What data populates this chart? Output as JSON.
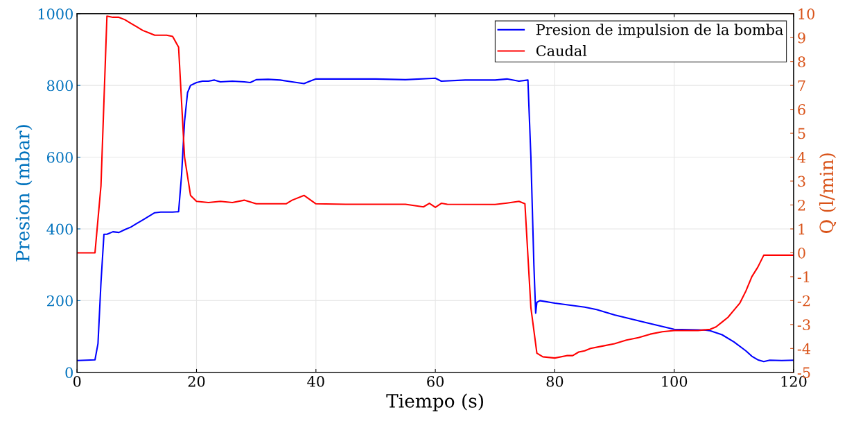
{
  "chart_data": {
    "type": "line",
    "xlabel": "Tiempo (s)",
    "ylabel": "Presion (mbar)",
    "y2label": "Q (l/min)",
    "xlim": [
      0,
      120
    ],
    "xticks": [
      0,
      20,
      40,
      60,
      80,
      100,
      120
    ],
    "ylim": [
      0,
      1000
    ],
    "yticks": [
      0,
      200,
      400,
      600,
      800,
      1000
    ],
    "y2lim": [
      -5,
      10
    ],
    "y2ticks": [
      -5,
      -4,
      -3,
      -2,
      -1,
      0,
      1,
      2,
      3,
      4,
      5,
      6,
      7,
      8,
      9,
      10
    ],
    "grid": true,
    "legend": "top right",
    "line_style": "solid",
    "marker": "none",
    "series": [
      {
        "name": "Presion de impulsion de la bomba",
        "color": "#0000ff",
        "x": [
          0,
          3,
          3.5,
          4,
          4.5,
          5,
          6,
          7,
          8,
          9,
          10,
          11,
          12,
          13,
          14,
          15,
          16,
          17,
          17.5,
          18,
          18.5,
          19,
          20,
          21,
          22,
          23,
          24,
          26,
          28,
          29,
          30,
          32,
          34,
          36,
          38,
          39,
          40,
          45,
          50,
          55,
          60,
          61,
          65,
          70,
          72,
          74,
          75.5,
          76,
          76.5,
          76.8,
          77,
          77.5,
          80,
          85,
          87,
          90,
          95,
          100,
          105,
          106,
          108,
          110,
          112,
          113,
          114,
          115,
          116,
          118,
          120
        ],
        "values": [
          33,
          35,
          80,
          250,
          385,
          385,
          392,
          390,
          398,
          405,
          415,
          425,
          435,
          445,
          447,
          447,
          447,
          448,
          550,
          700,
          780,
          800,
          808,
          812,
          812,
          815,
          810,
          812,
          810,
          808,
          816,
          817,
          815,
          810,
          805,
          812,
          818,
          818,
          818,
          816,
          820,
          812,
          815,
          815,
          818,
          812,
          815,
          600,
          300,
          165,
          195,
          200,
          193,
          182,
          175,
          160,
          140,
          120,
          118,
          116,
          105,
          85,
          60,
          45,
          35,
          30,
          34,
          33,
          34
        ]
      },
      {
        "name": "Caudal",
        "color": "#ff0000",
        "axis": "y2",
        "x": [
          0,
          3,
          4,
          5,
          6,
          7,
          8,
          9,
          10,
          11,
          12,
          13,
          14,
          15,
          16,
          17,
          18,
          19,
          20,
          22,
          24,
          26,
          28,
          30,
          33,
          35,
          36,
          38,
          40,
          45,
          50,
          55,
          58,
          59,
          60,
          61,
          62,
          70,
          72,
          74,
          75,
          76,
          77,
          78,
          80,
          82,
          83,
          84,
          85,
          86,
          88,
          90,
          92,
          94,
          96,
          98,
          100,
          104,
          106,
          107,
          108,
          109,
          110,
          111,
          112,
          113,
          114,
          115,
          120
        ],
        "values": [
          0,
          0,
          2.8,
          9.9,
          9.85,
          9.85,
          9.75,
          9.6,
          9.45,
          9.3,
          9.2,
          9.1,
          9.1,
          9.1,
          9.05,
          8.6,
          4,
          2.4,
          2.15,
          2.1,
          2.15,
          2.1,
          2.2,
          2.05,
          2.05,
          2.05,
          2.2,
          2.4,
          2.05,
          2.03,
          2.03,
          2.03,
          1.92,
          2.07,
          1.9,
          2.07,
          2.03,
          2.02,
          2.08,
          2.15,
          2.05,
          -2.3,
          -4.2,
          -4.35,
          -4.4,
          -4.3,
          -4.3,
          -4.15,
          -4.1,
          -4,
          -3.9,
          -3.8,
          -3.65,
          -3.55,
          -3.4,
          -3.3,
          -3.25,
          -3.25,
          -3.2,
          -3.1,
          -2.9,
          -2.7,
          -2.4,
          -2.1,
          -1.6,
          -1,
          -0.6,
          -0.1,
          -0.1
        ]
      }
    ]
  }
}
